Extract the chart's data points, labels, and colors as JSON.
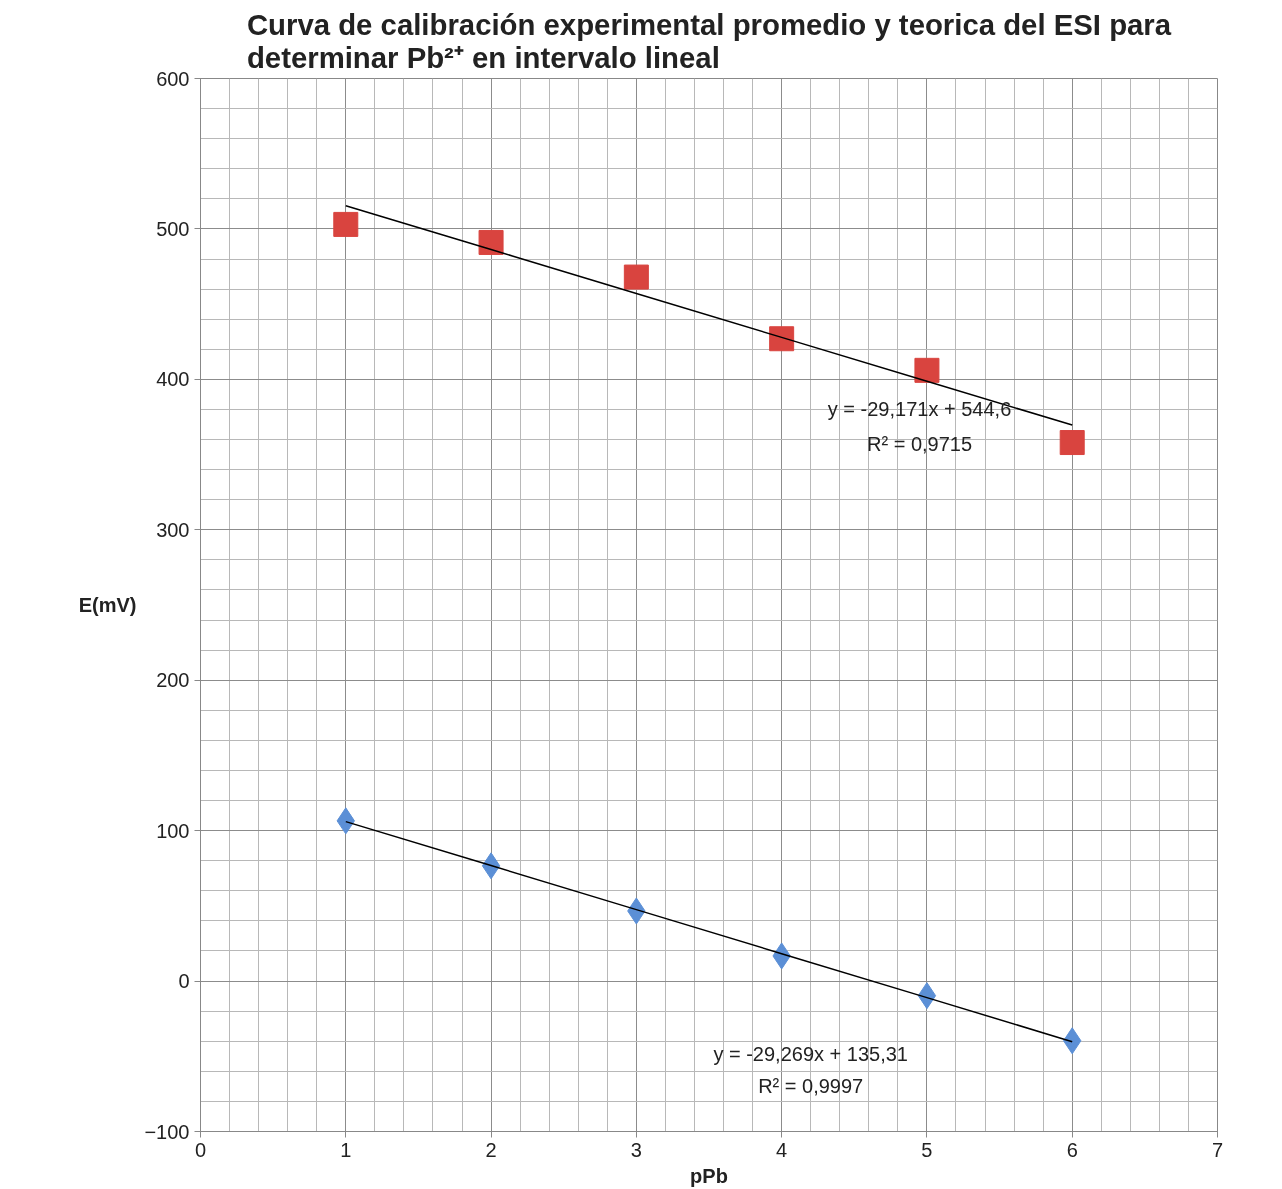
{
  "chart_data": {
    "type": "scatter",
    "title": "Curva de calibración experimental promedio y teorica del ESI para\ndeterminar  Pb²⁺ en intervalo lineal",
    "xlabel": "pPb",
    "ylabel": "E(mV)",
    "xlim": [
      0,
      7
    ],
    "xticks": [
      0,
      1,
      2,
      3,
      4,
      5,
      6,
      7
    ],
    "ylim": [
      -100,
      600
    ],
    "yticks": [
      -100,
      0,
      100,
      200,
      300,
      400,
      500,
      600
    ],
    "grid": true,
    "x": [
      1,
      2,
      3,
      4,
      5,
      6
    ],
    "series": [
      {
        "color": "#d9443f",
        "marker": "square",
        "values": [
          503,
          491,
          468,
          427,
          406,
          358
        ]
      },
      {
        "color": "#5b8fd6",
        "marker": "diamond",
        "values": [
          106.5,
          76.6,
          46.6,
          16.7,
          -9.7,
          -39.7
        ]
      },
      {
        "type": "line",
        "color": "#000000",
        "marker": "none",
        "values": [
          515.4,
          486.3,
          457.1,
          427.9,
          398.7,
          369.6
        ]
      },
      {
        "type": "line",
        "color": "#000000",
        "marker": "none",
        "values": [
          106.0,
          76.8,
          47.5,
          18.2,
          -11.0,
          -40.3
        ]
      }
    ],
    "annotations": [
      "y = -29,171x + 544,6",
      "R² = 0,9715",
      "y = -29,269x + 135,31",
      "R² = 0,9997"
    ]
  }
}
